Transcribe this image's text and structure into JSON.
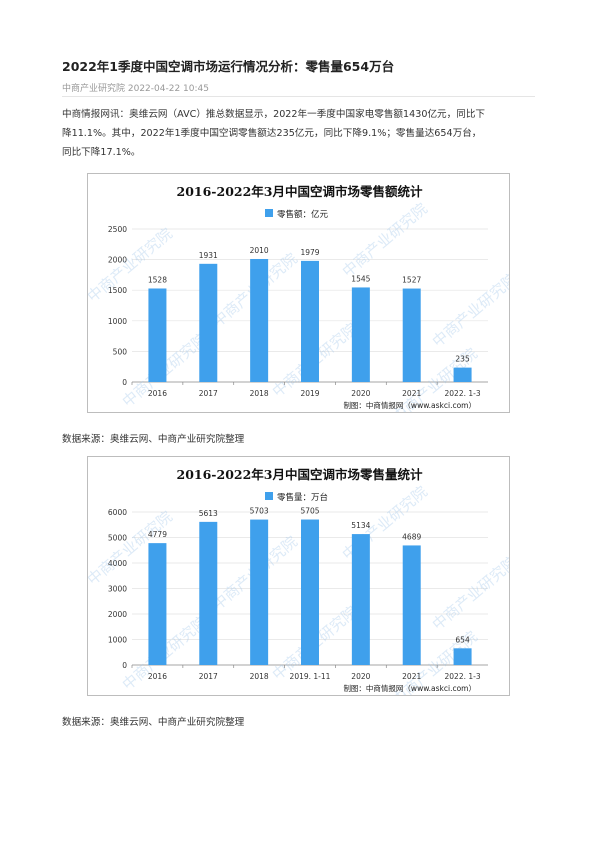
{
  "article": {
    "title": "2022年1季度中国空调市场运行情况分析：零售量654万台",
    "meta": "中商产业研究院 2022-04-22 10:45",
    "paragraph_lines": [
      "中商情报网讯：奥维云网（AVC）推总数据显示，2022年一季度中国家电零售额1430亿元，同比下",
      "降11.1%。其中，2022年1季度中国空调零售额达235亿元，同比下降9.1%；零售量达654万台，",
      "同比下降17.1%。"
    ]
  },
  "watermark_text": "中商产业研究院",
  "colors": {
    "bar": "#3fa0ec",
    "grid": "#e3e3e3",
    "axis": "#888888",
    "text": "#333333"
  },
  "chart_data": [
    {
      "type": "bar",
      "title": "2016-2022年3月中国空调市场零售额统计",
      "legend": "零售额：亿元",
      "legend_position": "top",
      "categories": [
        "2016",
        "2017",
        "2018",
        "2019",
        "2020",
        "2021",
        "2022. 1-3"
      ],
      "values": [
        1528,
        1931,
        2010,
        1979,
        1545,
        1527,
        235
      ],
      "ylim": [
        0,
        2500
      ],
      "yticks": [
        0,
        500,
        1000,
        1500,
        2000,
        2500
      ],
      "grid": true,
      "credit": "制图：中商情报网（www.askci.com）"
    },
    {
      "type": "bar",
      "title": "2016-2022年3月中国空调市场零售量统计",
      "legend": "零售量：万台",
      "legend_position": "top",
      "categories": [
        "2016",
        "2017",
        "2018",
        "2019. 1-11",
        "2020",
        "2021",
        "2022. 1-3"
      ],
      "values": [
        4779,
        5613,
        5703,
        5705,
        5134,
        4689,
        654
      ],
      "ylim": [
        0,
        6000
      ],
      "yticks": [
        0,
        1000,
        2000,
        3000,
        4000,
        5000,
        6000
      ],
      "grid": true,
      "credit": "制图：中商情报网（www.askci.com）"
    }
  ],
  "sources": [
    "数据来源：奥维云网、中商产业研究院整理",
    "数据来源：奥维云网、中商产业研究院整理"
  ]
}
